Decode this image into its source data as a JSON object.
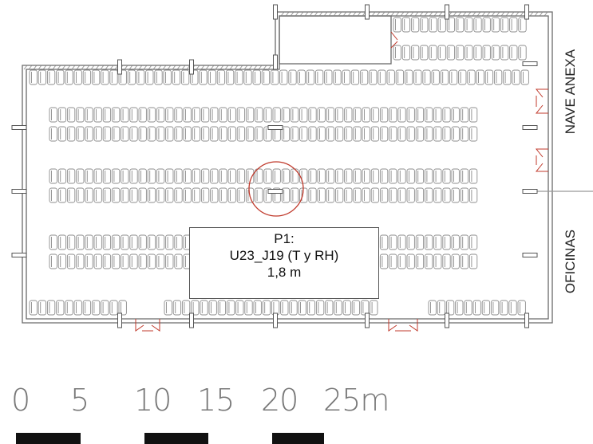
{
  "side_labels": {
    "nave_anexa": "NAVE ANEXA",
    "oficinas": "OFICINAS"
  },
  "callout": {
    "line1": "P1:",
    "line2": "U23_J19 (T y RH)",
    "line3": "1,8 m"
  },
  "scale": {
    "labels": [
      "0",
      "5",
      "10",
      "15",
      "20",
      "25m"
    ]
  },
  "colors": {
    "wall": "#6a6a6a",
    "cage": "#8c8c8c",
    "door": "#c0392b",
    "marker": "#c0392b",
    "scale_bar": "#111111"
  }
}
